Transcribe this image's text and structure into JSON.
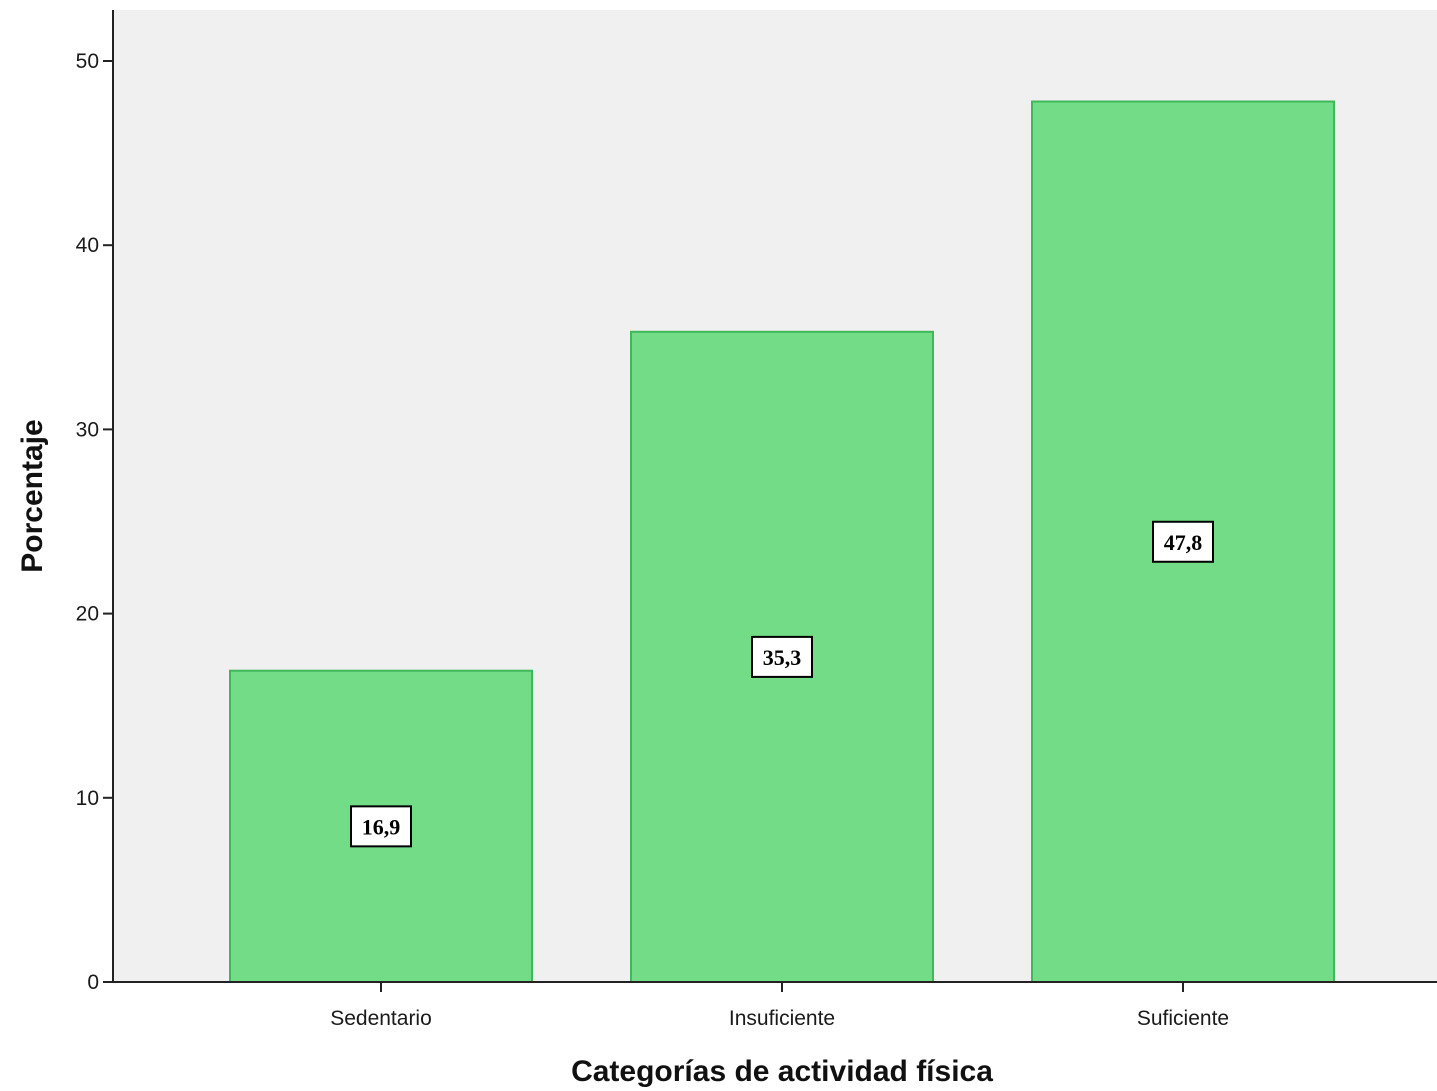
{
  "chart_data": {
    "type": "bar",
    "title": "",
    "xlabel": "Categorías de actividad física",
    "ylabel": "Porcentaje",
    "categories": [
      "Sedentario",
      "Insuficiente",
      "Suficiente"
    ],
    "values": [
      16.9,
      35.3,
      47.8
    ],
    "data_labels": [
      "16,9",
      "35,3",
      "47,8"
    ],
    "ylim": [
      0,
      50
    ],
    "yticks": [
      0,
      10,
      20,
      30,
      40,
      50
    ],
    "ytick_labels": [
      "0",
      "10",
      "20",
      "30",
      "40",
      "50"
    ],
    "grid": false,
    "legend": "none",
    "colors": {
      "bar_fill": "#72dc86",
      "bar_stroke": "#3fb85a",
      "plot_background": "#f0f0f0",
      "axis": "#222222"
    }
  }
}
